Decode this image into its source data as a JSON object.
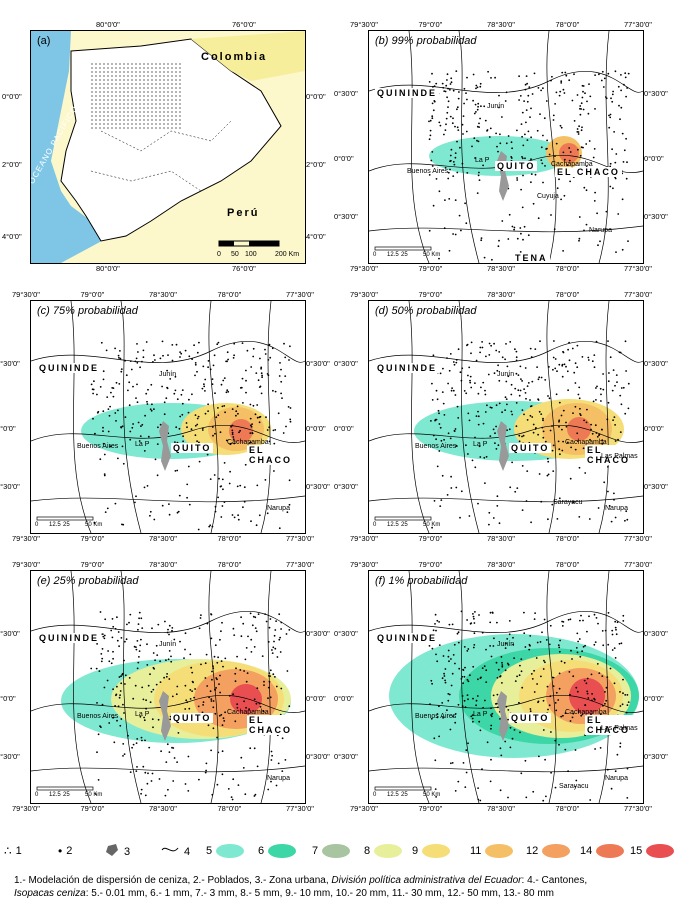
{
  "panels": {
    "a": {
      "label": "(a)",
      "countries": {
        "colombia": "Colombia",
        "peru": "Perú"
      },
      "ocean": "OCEANO PACIFICO",
      "scale": {
        "ticks": [
          "0",
          "50",
          "100",
          "200 Km"
        ]
      }
    },
    "b": {
      "label": "(b)",
      "title": "99% probabilidad"
    },
    "c": {
      "label": "(c)",
      "title": "75% probabilidad"
    },
    "d": {
      "label": "(d)",
      "title": "50% probabilidad"
    },
    "e": {
      "label": "(e)",
      "title": "25% probabilidad"
    },
    "f": {
      "label": "(f)",
      "title": "1% probabilidad"
    }
  },
  "panel_a_lon": [
    "80°0'0\"",
    "76°0'0\""
  ],
  "panel_a_lat": [
    "0°0'0\"",
    "2°0'0\"",
    "4°0'0\""
  ],
  "panel_a_lat_right": [
    "0°0'0\"",
    "2°0'0\"",
    "4°0'0\""
  ],
  "lon_ticks": [
    "79°30'0\"",
    "79°0'0\"",
    "78°30'0\"",
    "78°0'0\"",
    "77°30'0\""
  ],
  "lat_ticks": [
    "0°30'0\"",
    "0°0'0\"",
    "0°30'0\""
  ],
  "places": {
    "quinindé": "QUININDE",
    "quito": "QUITO",
    "el_chaco": "EL CHACO",
    "tena": "TENA",
    "junin": "Junín",
    "buenos_aires": "Buenos Aires",
    "la_paz": "La P",
    "cachapamba": "Cachapamba",
    "cuyuja": "Cuyuja",
    "narupa": "Narupa",
    "las_palmas": "Las Palmas",
    "sarayacu": "Sarayacu"
  },
  "scale_bar": [
    "0",
    "12.5",
    "25",
    "50 Km"
  ],
  "legend": [
    {
      "num": "1",
      "color": ""
    },
    {
      "num": "2",
      "color": ""
    },
    {
      "num": "3",
      "color": ""
    },
    {
      "num": "4",
      "color": ""
    },
    {
      "num": "5",
      "color": "#7fe8d0"
    },
    {
      "num": "6",
      "color": "#3dd6a6"
    },
    {
      "num": "7",
      "color": "#a8c4a0"
    },
    {
      "num": "8",
      "color": "#e8ef9a"
    },
    {
      "num": "9",
      "color": "#f5de78"
    },
    {
      "num": "11",
      "color": "#f5c065"
    },
    {
      "num": "12",
      "color": "#f4a060"
    },
    {
      "num": "14",
      "color": "#ee7a55"
    },
    {
      "num": "15",
      "color": "#e94e50"
    }
  ],
  "caption": {
    "line1a": "1.- Modelación de dispersión de ceniza, 2.- Poblados, 3.- Zona urbana, ",
    "line1b": "División política administrativa del Ecuador",
    "line1c": ":   4.- Cantones,",
    "line2a": "Isopacas ceniza",
    "line2b": ": 5.- 0.01 mm, 6.- 1 mm, 7.- 3 mm, 8.- 5 mm, 9.- 10 mm, 10.- 20 mm, 11.- 30 mm, 12.- 50 mm, 13.- 80 mm"
  }
}
